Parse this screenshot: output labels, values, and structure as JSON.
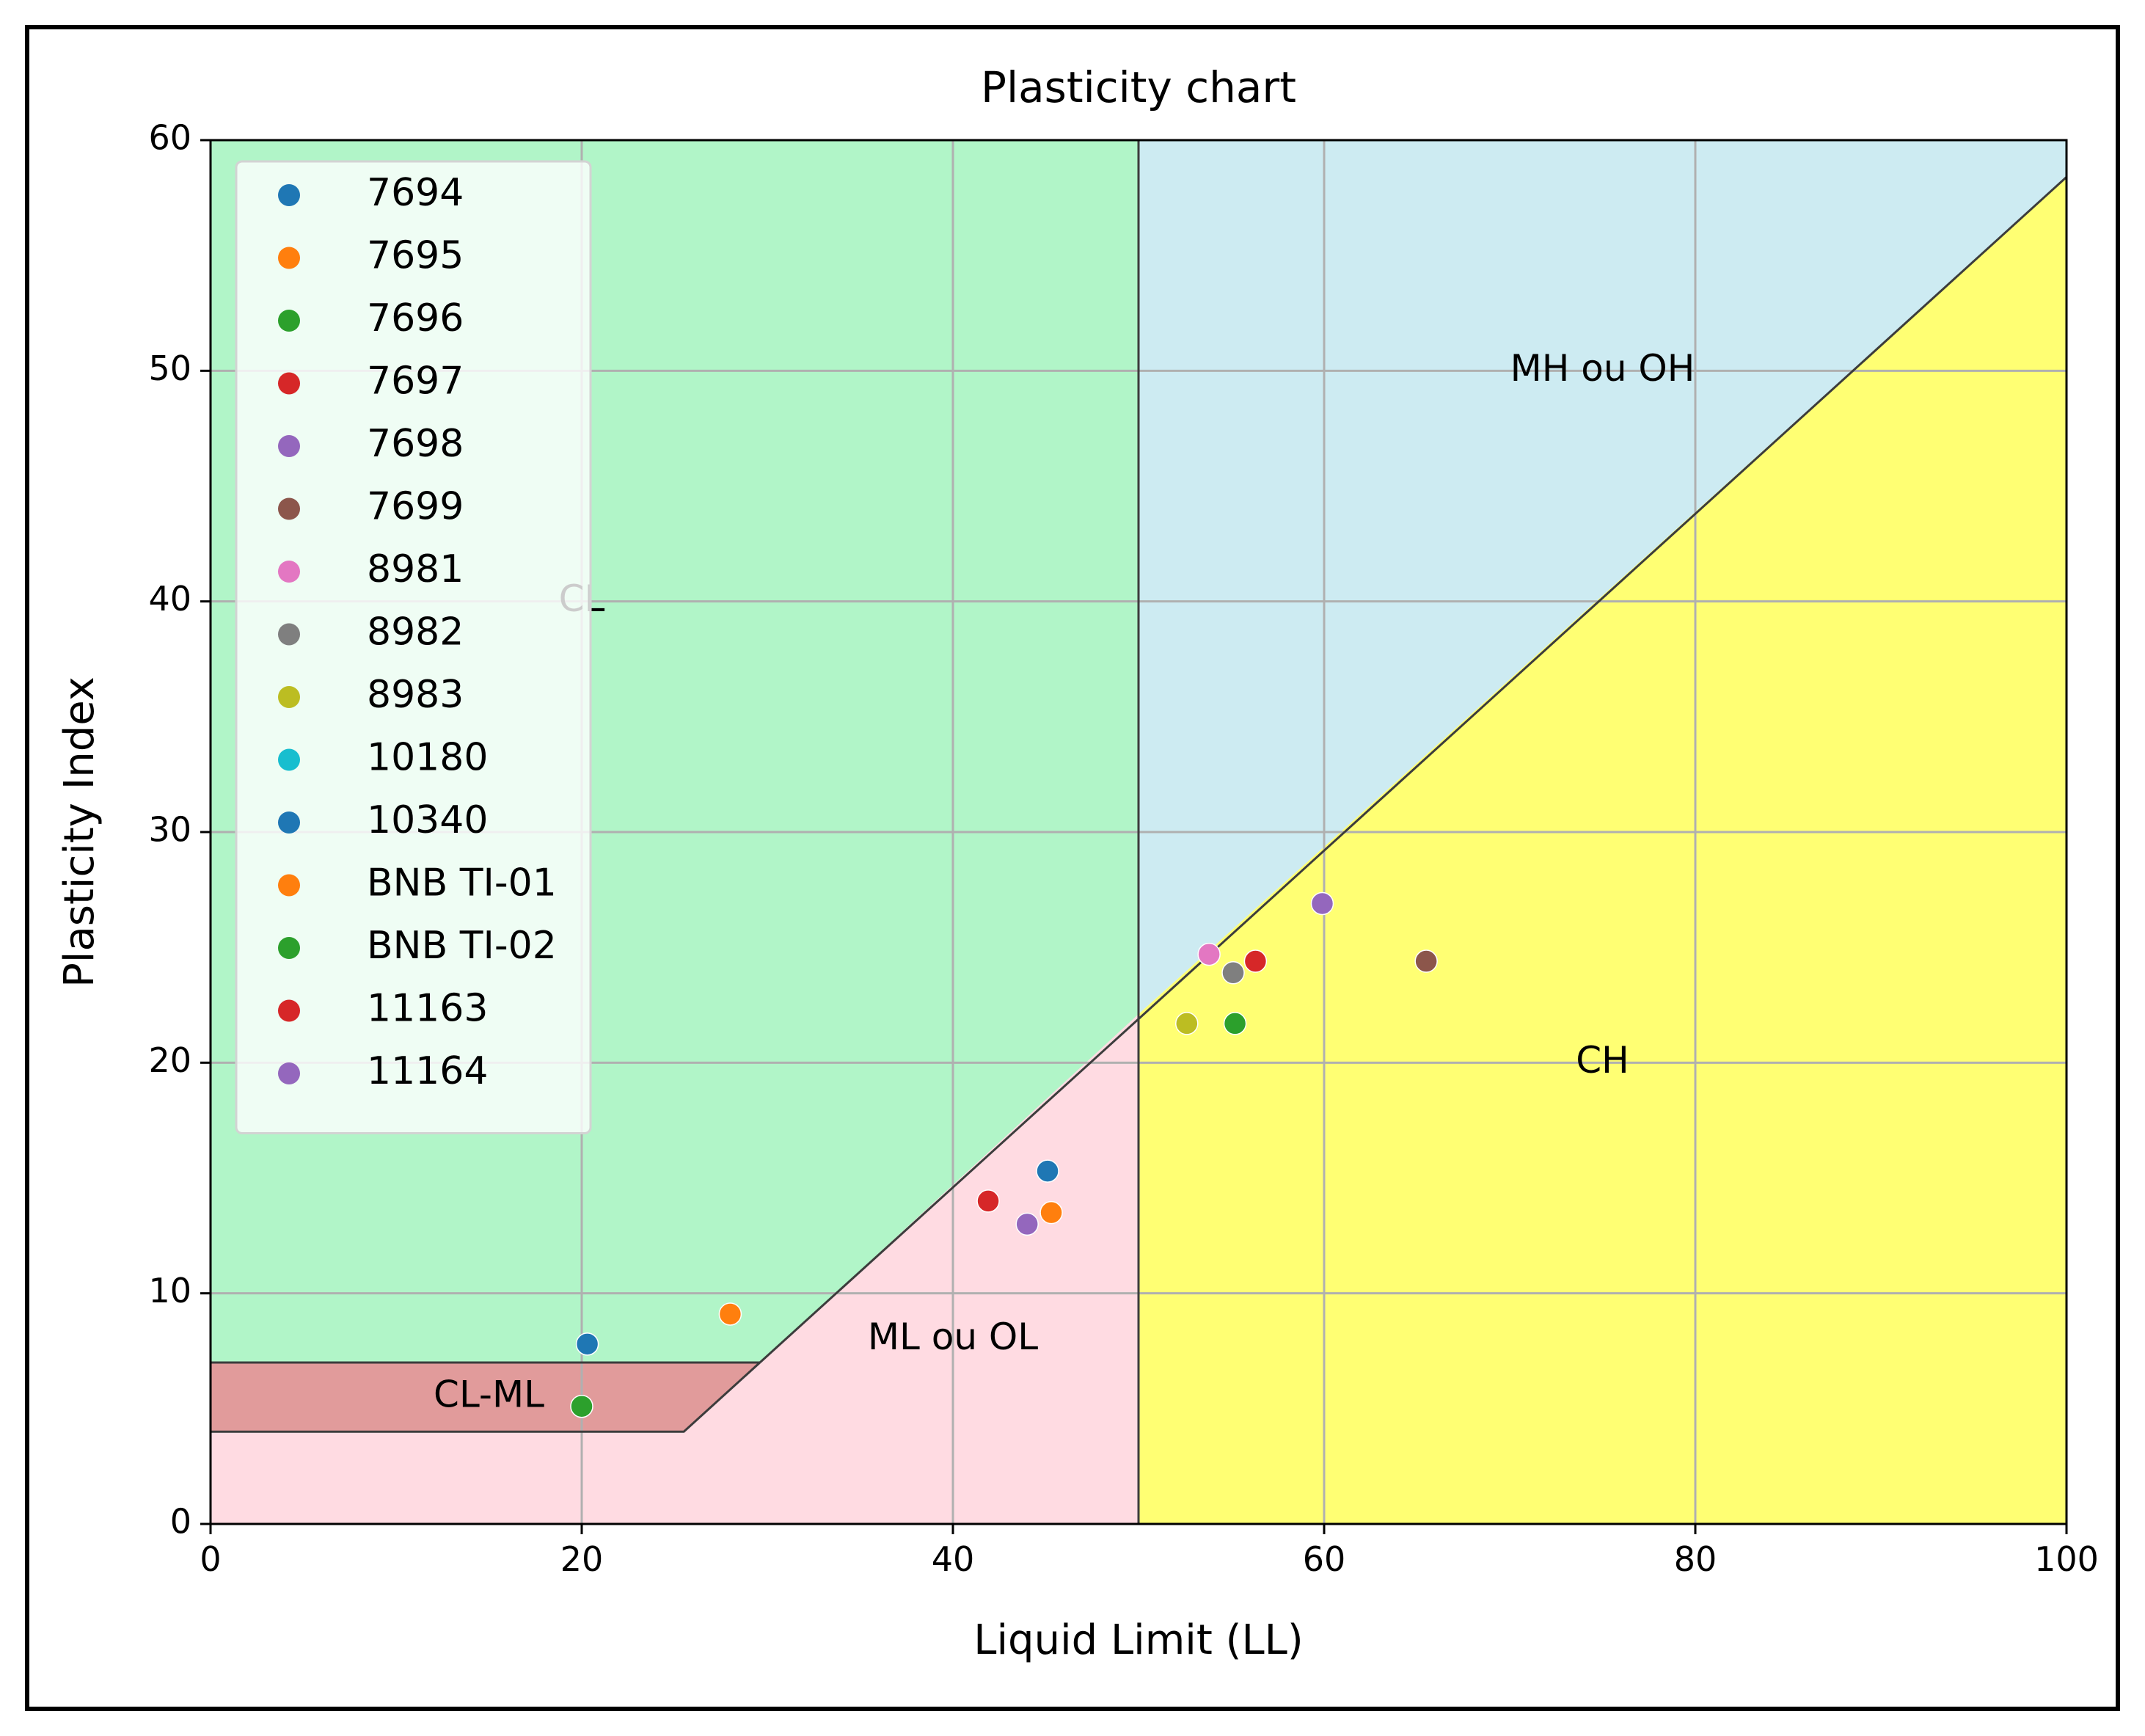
{
  "chart_data": {
    "type": "scatter",
    "title": "Plasticity chart",
    "xlabel": "Liquid Limit (LL)",
    "ylabel": "Plasticity Index",
    "xlim": [
      0,
      100
    ],
    "ylim": [
      0,
      60
    ],
    "xticks": [
      0,
      20,
      40,
      60,
      80,
      100
    ],
    "yticks": [
      0,
      10,
      20,
      30,
      40,
      50,
      60
    ],
    "grid": true,
    "legend_position": "upper-left",
    "zones": [
      {
        "name": "CL",
        "color": "#b1f5c8",
        "polygon": [
          [
            0,
            7
          ],
          [
            29.6,
            7
          ],
          [
            50,
            22.1
          ],
          [
            50,
            60
          ],
          [
            0,
            60
          ]
        ]
      },
      {
        "name": "MH ou OH",
        "color": "#cdebf2",
        "polygon": [
          [
            50,
            22.1
          ],
          [
            100,
            58.4
          ],
          [
            100,
            60
          ],
          [
            50,
            60
          ]
        ]
      },
      {
        "name": "CH",
        "color": "#ffff73",
        "polygon": [
          [
            50,
            0
          ],
          [
            100,
            0
          ],
          [
            100,
            58.4
          ],
          [
            50,
            22.1
          ]
        ]
      },
      {
        "name": "ML ou OL",
        "color": "#ffdbe2",
        "polygon": [
          [
            0,
            0
          ],
          [
            50,
            0
          ],
          [
            50,
            22.1
          ],
          [
            29.6,
            7
          ],
          [
            25.5,
            4
          ],
          [
            0,
            4
          ]
        ]
      },
      {
        "name": "CL-ML",
        "color": "#e19b9b",
        "polygon": [
          [
            0,
            4
          ],
          [
            25.5,
            4
          ],
          [
            29.6,
            7
          ],
          [
            0,
            7
          ]
        ]
      }
    ],
    "zone_labels": [
      {
        "text": "CL",
        "x": 20,
        "y": 40
      },
      {
        "text": "MH ou OH",
        "x": 75,
        "y": 50
      },
      {
        "text": "CH",
        "x": 75,
        "y": 20
      },
      {
        "text": "ML ou OL",
        "x": 40,
        "y": 8
      },
      {
        "text": "CL-ML",
        "x": 15,
        "y": 5.5
      }
    ],
    "series": [
      {
        "name": "7694",
        "color": "#1f77b4",
        "points": [
          [
            20.3,
            7.8
          ]
        ]
      },
      {
        "name": "7695",
        "color": "#ff7f0e",
        "points": [
          [
            28,
            9.1
          ]
        ]
      },
      {
        "name": "7696",
        "color": "#2ca02c",
        "points": [
          [
            20,
            5.1
          ]
        ]
      },
      {
        "name": "7697",
        "color": "#d62728",
        "points": [
          [
            41.9,
            14
          ]
        ]
      },
      {
        "name": "7698",
        "color": "#9467bd",
        "points": [
          [
            44,
            13
          ]
        ]
      },
      {
        "name": "7699",
        "color": "#8c564b",
        "points": [
          [
            65.5,
            24.4
          ]
        ]
      },
      {
        "name": "8981",
        "color": "#e377c2",
        "points": [
          [
            53.8,
            24.7
          ]
        ]
      },
      {
        "name": "8982",
        "color": "#7f7f7f",
        "points": [
          [
            55.1,
            23.9
          ]
        ]
      },
      {
        "name": "8983",
        "color": "#bcbd22",
        "points": [
          [
            52.6,
            21.7
          ]
        ]
      },
      {
        "name": "10180",
        "color": "#17becf",
        "points": []
      },
      {
        "name": "10340",
        "color": "#1f77b4",
        "points": [
          [
            45.1,
            15.3
          ]
        ]
      },
      {
        "name": "BNB TI-01",
        "color": "#ff7f0e",
        "points": [
          [
            45.3,
            13.5
          ]
        ]
      },
      {
        "name": "BNB TI-02",
        "color": "#2ca02c",
        "points": [
          [
            55.2,
            21.7
          ]
        ]
      },
      {
        "name": "11163",
        "color": "#d62728",
        "points": [
          [
            56.3,
            24.4
          ]
        ]
      },
      {
        "name": "11164",
        "color": "#9467bd",
        "points": [
          [
            59.9,
            26.9
          ]
        ]
      }
    ]
  }
}
